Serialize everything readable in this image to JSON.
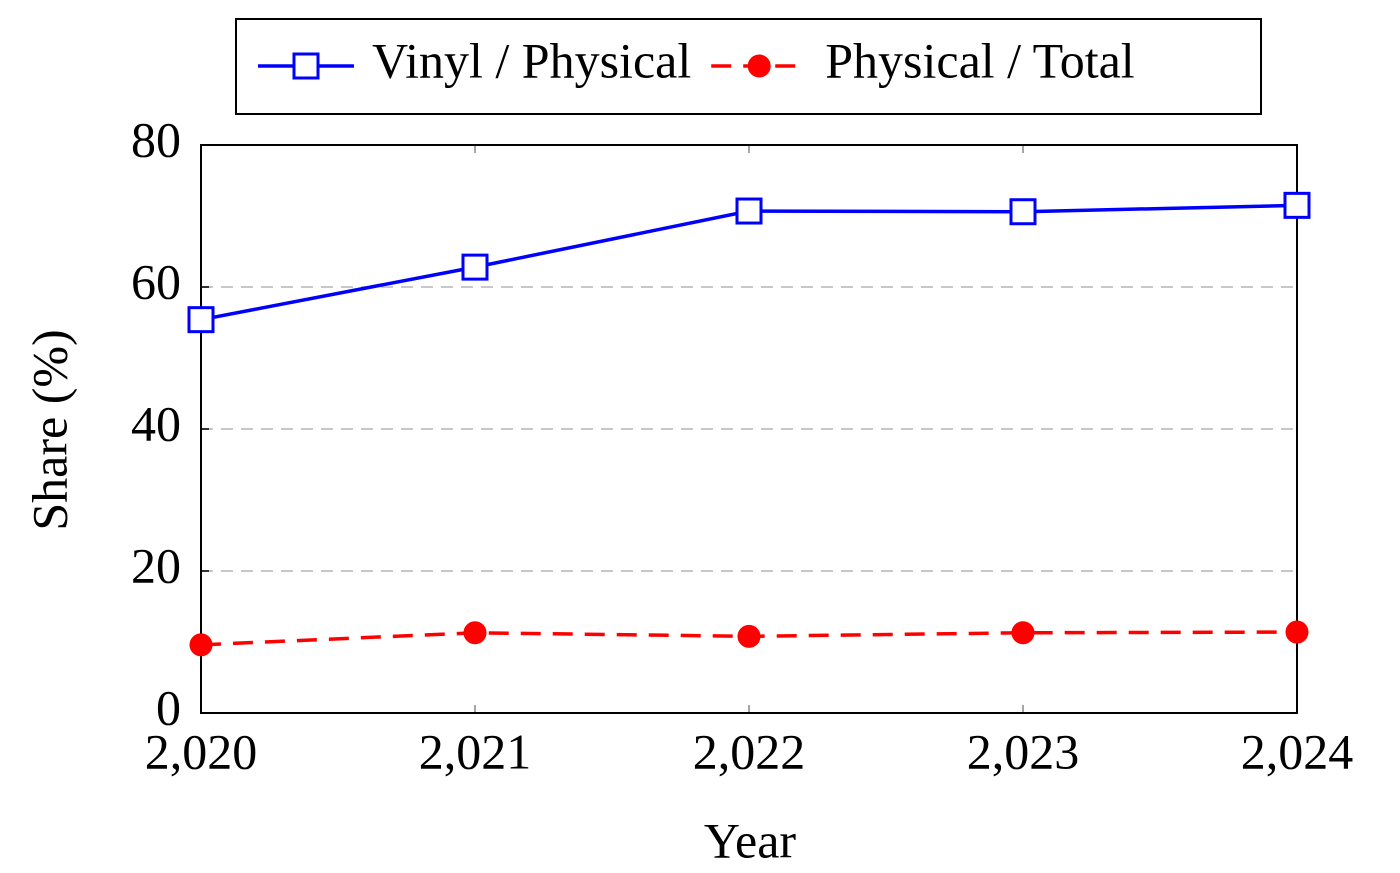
{
  "chart_data": {
    "type": "line",
    "x": [
      2020,
      2021,
      2022,
      2023,
      2024
    ],
    "xlim": [
      2020,
      2024
    ],
    "xticks": [
      {
        "value": 2020,
        "label": "2,020"
      },
      {
        "value": 2021,
        "label": "2,021"
      },
      {
        "value": 2022,
        "label": "2,022"
      },
      {
        "value": 2023,
        "label": "2,023"
      },
      {
        "value": 2024,
        "label": "2,024"
      }
    ],
    "ylim": [
      0,
      80
    ],
    "yticks": [
      0,
      20,
      40,
      60,
      80
    ],
    "xlabel": "Year",
    "ylabel": "Share (%)",
    "grid": true,
    "series": [
      {
        "name": "Vinyl / Physical",
        "color": "#0000ff",
        "marker": "square",
        "dashed": false,
        "values": [
          55.4,
          62.8,
          70.7,
          70.6,
          71.5
        ]
      },
      {
        "name": "Physical / Total",
        "color": "#ff0000",
        "marker": "circle",
        "dashed": true,
        "values": [
          9.6,
          11.3,
          10.8,
          11.3,
          11.4
        ]
      }
    ]
  }
}
